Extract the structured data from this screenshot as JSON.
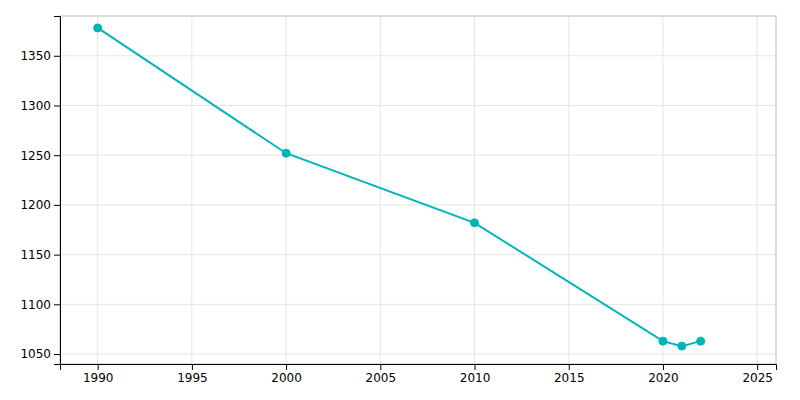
{
  "chart_data": {
    "type": "line",
    "x": [
      1990,
      2000,
      2010,
      2020,
      2021,
      2022
    ],
    "values": [
      1378,
      1252,
      1182,
      1063,
      1058,
      1063
    ],
    "color": "#00b5b8",
    "marker": "circle",
    "xlim": [
      1988,
      2026
    ],
    "ylim": [
      1040,
      1390
    ],
    "xticks": [
      1990,
      1995,
      2000,
      2005,
      2010,
      2015,
      2020,
      2025
    ],
    "yticks": [
      1050,
      1100,
      1150,
      1200,
      1250,
      1300,
      1350
    ],
    "grid": true
  }
}
